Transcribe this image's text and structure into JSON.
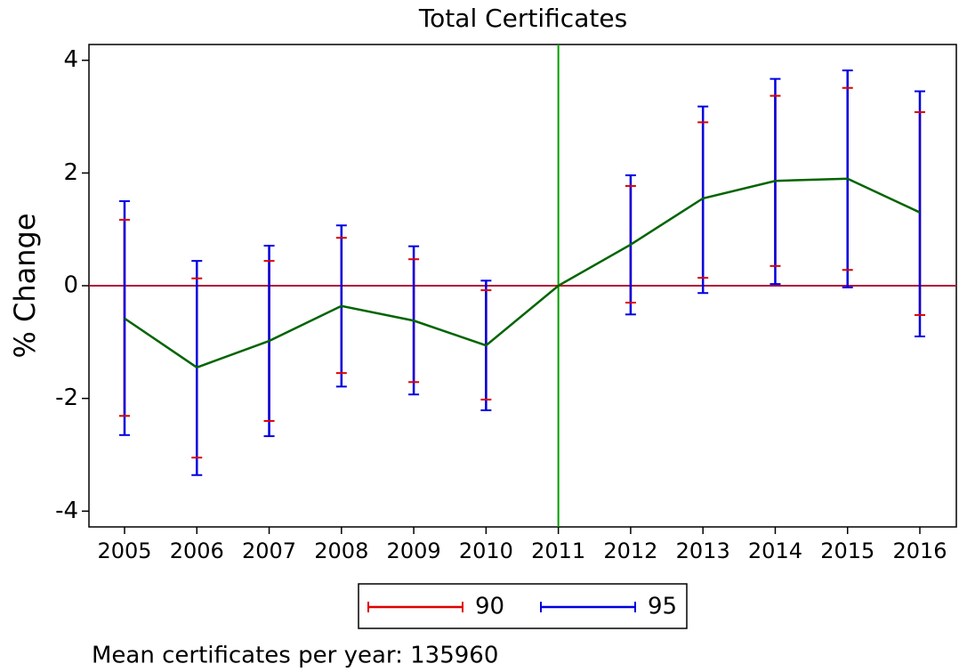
{
  "chart_data": {
    "type": "line",
    "title": "Total Certificates",
    "y_label": "% Change",
    "categories": [
      "2005",
      "2006",
      "2007",
      "2008",
      "2009",
      "2010",
      "2011",
      "2012",
      "2013",
      "2014",
      "2015",
      "2016"
    ],
    "values": [
      -0.58,
      -1.45,
      -0.98,
      -0.36,
      -0.62,
      -1.06,
      0,
      0.73,
      1.55,
      1.86,
      1.9,
      1.3
    ],
    "color": "#006400",
    "intervals": [
      {
        "name": "90",
        "color": "#e00000",
        "low": [
          -2.31,
          -3.05,
          -2.4,
          -1.55,
          -1.71,
          -2.02,
          0,
          -0.3,
          0.14,
          0.35,
          0.28,
          -0.52
        ],
        "high": [
          1.17,
          0.13,
          0.44,
          0.85,
          0.47,
          -0.08,
          0,
          1.77,
          2.9,
          3.37,
          3.51,
          3.08
        ]
      },
      {
        "name": "95",
        "color": "#0000e0",
        "low": [
          -2.65,
          -3.36,
          -2.67,
          -1.79,
          -1.93,
          -2.21,
          0,
          -0.51,
          -0.13,
          0.03,
          -0.03,
          -0.9
        ],
        "high": [
          1.5,
          0.44,
          0.71,
          1.07,
          0.7,
          0.09,
          0,
          1.96,
          3.18,
          3.67,
          3.82,
          3.45
        ]
      }
    ],
    "hline": 0,
    "hline_color": "#b0103a",
    "vline_category": "2011",
    "vline_color": "#00a000",
    "ylim": [
      -4.28,
      4.28
    ],
    "yticks": [
      -4,
      -2,
      0,
      2,
      4
    ],
    "note": "Mean certificates per year: 135960"
  }
}
